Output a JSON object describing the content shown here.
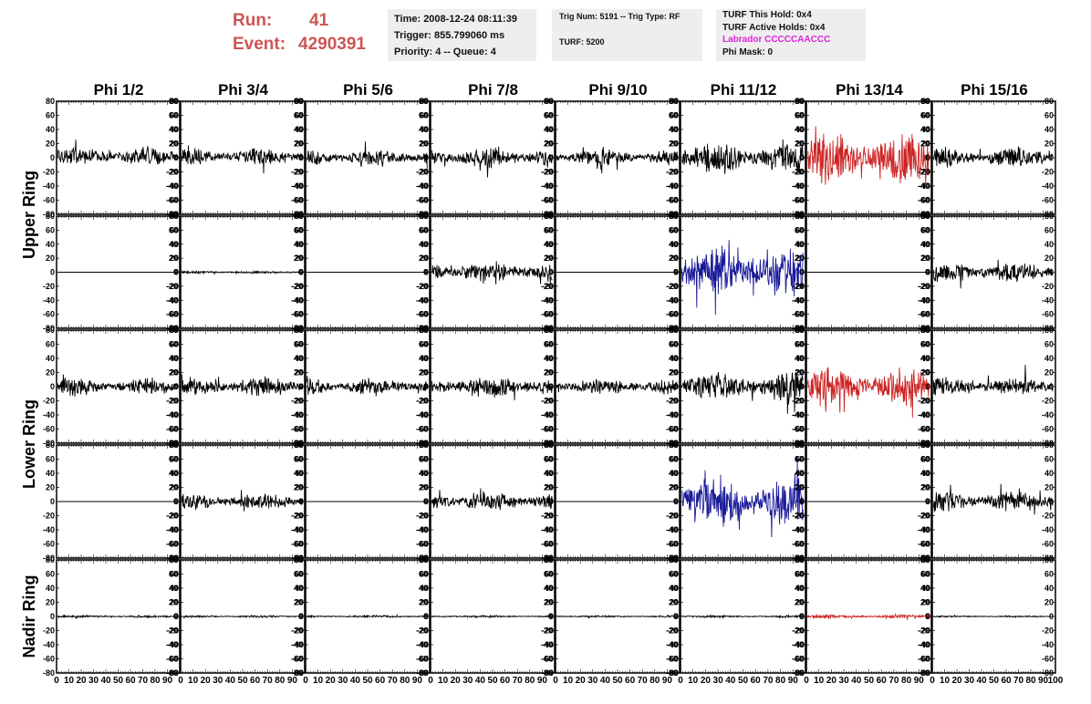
{
  "header": {
    "run_label": "Run:",
    "run_value": "41",
    "event_label": "Event:",
    "event_value": "4290391",
    "time": "Time: 2008-12-24 08:11:39",
    "trigger": "Trigger: 855.799060 ms",
    "priority": "Priority: 4 -- Queue: 4",
    "trig_num": "Trig Num: 5191 -- Trig Type: RF",
    "turf": "TURF: 5200",
    "turf_this_hold": "TURF This Hold: 0x4",
    "turf_active_holds": "TURF Active Holds: 0x4",
    "labrador": "Labrador CCCCCAACCC",
    "phi_mask": "Phi Mask: 0"
  },
  "columns": [
    "Phi 1/2",
    "Phi 3/4",
    "Phi 5/6",
    "Phi 7/8",
    "Phi 9/10",
    "Phi 11/12",
    "Phi 13/14",
    "Phi 15/16"
  ],
  "ring_labels": [
    {
      "label": "Upper Ring",
      "rows": [
        0,
        1
      ]
    },
    {
      "label": "Lower Ring",
      "rows": [
        2,
        3
      ]
    },
    {
      "label": "Nadir Ring",
      "rows": [
        4
      ]
    }
  ],
  "colors": {
    "normal": "#000000",
    "triggered_red": "#cc2222",
    "triggered_blue": "#1a1a99",
    "labrador": "#dd22dd",
    "run_text": "#cc5555"
  },
  "chart_data": {
    "type": "line",
    "xlim": [
      0,
      100
    ],
    "ylim": [
      -80,
      80
    ],
    "yticks": [
      -80,
      -60,
      -40,
      -20,
      0,
      20,
      40,
      60,
      80
    ],
    "xticks": [
      0,
      10,
      20,
      30,
      40,
      50,
      60,
      70,
      80,
      90,
      100
    ],
    "xtick_labels": [
      "0",
      "10",
      "20",
      "30",
      "40",
      "50",
      "60",
      "70",
      "80",
      "90",
      "100"
    ],
    "panels": [
      [
        {
          "amp": 13,
          "offset": 2,
          "color": "normal"
        },
        {
          "amp": 12,
          "offset": 2,
          "color": "normal"
        },
        {
          "amp": 12,
          "offset": 0,
          "color": "normal"
        },
        {
          "amp": 14,
          "offset": 0,
          "color": "normal"
        },
        {
          "amp": 12,
          "offset": 0,
          "color": "normal"
        },
        {
          "amp": 22,
          "offset": 0,
          "color": "normal"
        },
        {
          "amp": 35,
          "offset": 0,
          "color": "triggered_red"
        },
        {
          "amp": 14,
          "offset": 0,
          "color": "normal"
        }
      ],
      [
        {
          "amp": 0,
          "offset": 0,
          "color": "normal"
        },
        {
          "amp": 2,
          "offset": 0,
          "color": "normal"
        },
        {
          "amp": 0,
          "offset": 0,
          "color": "normal"
        },
        {
          "amp": 15,
          "offset": 0,
          "color": "normal"
        },
        {
          "amp": 0,
          "offset": 0,
          "color": "normal"
        },
        {
          "amp": 35,
          "offset": 0,
          "color": "triggered_blue"
        },
        {
          "amp": 0,
          "offset": 0,
          "color": "normal"
        },
        {
          "amp": 14,
          "offset": 0,
          "color": "normal"
        }
      ],
      [
        {
          "amp": 12,
          "offset": 0,
          "color": "normal"
        },
        {
          "amp": 14,
          "offset": 0,
          "color": "normal"
        },
        {
          "amp": 12,
          "offset": 0,
          "color": "normal"
        },
        {
          "amp": 15,
          "offset": 0,
          "color": "normal"
        },
        {
          "amp": 11,
          "offset": 0,
          "color": "normal"
        },
        {
          "amp": 20,
          "offset": 0,
          "color": "normal"
        },
        {
          "amp": 28,
          "offset": 0,
          "color": "triggered_red"
        },
        {
          "amp": 13,
          "offset": 0,
          "color": "normal"
        }
      ],
      [
        {
          "amp": 0,
          "offset": 0,
          "color": "normal"
        },
        {
          "amp": 12,
          "offset": 0,
          "color": "normal"
        },
        {
          "amp": 0,
          "offset": 0,
          "color": "normal"
        },
        {
          "amp": 14,
          "offset": 0,
          "color": "normal"
        },
        {
          "amp": 0,
          "offset": 0,
          "color": "normal"
        },
        {
          "amp": 35,
          "offset": 0,
          "color": "triggered_blue"
        },
        {
          "amp": 0,
          "offset": 0,
          "color": "normal"
        },
        {
          "amp": 14,
          "offset": 0,
          "color": "normal"
        }
      ],
      [
        {
          "amp": 1.5,
          "offset": 0,
          "color": "normal"
        },
        {
          "amp": 1.5,
          "offset": 0,
          "color": "normal"
        },
        {
          "amp": 1.5,
          "offset": 0,
          "color": "normal"
        },
        {
          "amp": 1.5,
          "offset": 0,
          "color": "normal"
        },
        {
          "amp": 1.5,
          "offset": 0,
          "color": "normal"
        },
        {
          "amp": 1.5,
          "offset": 0,
          "color": "normal"
        },
        {
          "amp": 2.5,
          "offset": 0,
          "color": "triggered_red"
        },
        {
          "amp": 1,
          "offset": 0,
          "color": "normal"
        }
      ]
    ]
  }
}
